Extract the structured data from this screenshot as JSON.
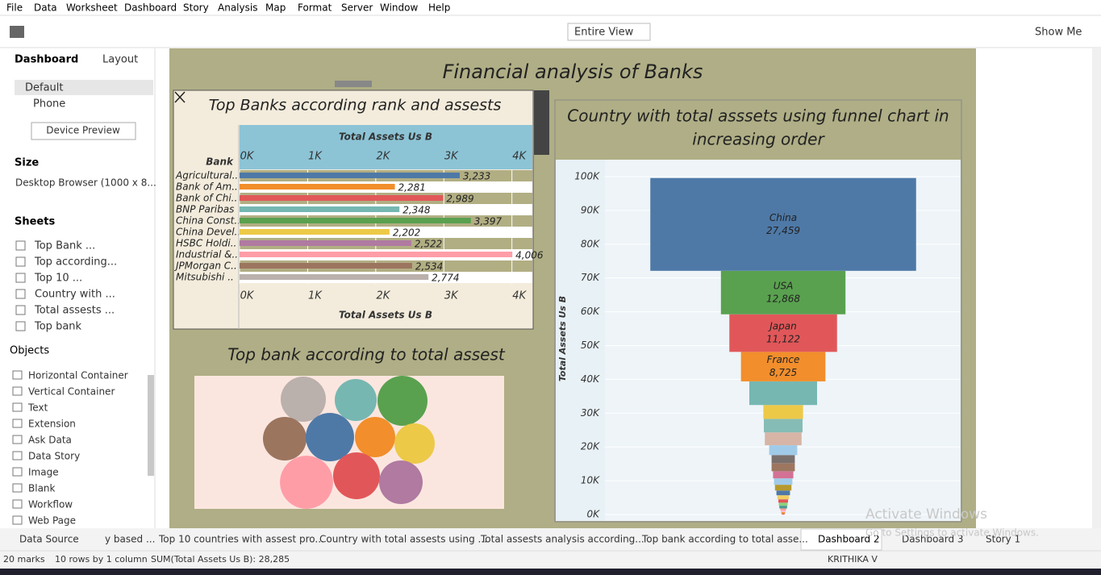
{
  "menu": [
    "File",
    "Data",
    "Worksheet",
    "Dashboard",
    "Story",
    "Analysis",
    "Map",
    "Format",
    "Server",
    "Window",
    "Help"
  ],
  "toolbar": {
    "view": "Entire View",
    "show_me": "Show Me"
  },
  "side_panel": {
    "tabs": [
      "Dashboard",
      "Layout"
    ],
    "devices": [
      "Default",
      "Phone"
    ],
    "device_preview": "Device Preview",
    "size_heading": "Size",
    "size": "Desktop Browser (1000 x 8...",
    "sheets_heading": "Sheets",
    "sheets": [
      "Top Bank ...",
      "Top according...",
      "Top 10 ...",
      "Country with ...",
      "Total assests ...",
      "Top bank"
    ],
    "objects_heading": "Objects",
    "objects": [
      "Horizontal Container",
      "Vertical Container",
      "Text",
      "Extension",
      "Ask Data",
      "Data Story",
      "Image",
      "Blank",
      "Workflow",
      "Web Page"
    ]
  },
  "dashboard_title": "Financial analysis of Banks",
  "chart_data": [
    {
      "type": "bar",
      "title": "Top Banks according rank and assests",
      "y_label": "Bank",
      "x_label": "Total Assets Us B",
      "categories": [
        "Agricultural..",
        "Bank of Am..",
        "Bank of Chi..",
        "BNP Paribas",
        "China Const..",
        "China Devel..",
        "HSBC Holdi..",
        "Industrial &..",
        "JPMorgan C..",
        "Mitsubishi .."
      ],
      "values": [
        3233,
        2281,
        2989,
        2348,
        3397,
        2202,
        2522,
        4006,
        2534,
        2774
      ],
      "value_labels": [
        "3,233",
        "2,281",
        "2,989",
        "2,348",
        "3,397",
        "2,202",
        "2,522",
        "4,006",
        "2,534",
        "2,774"
      ],
      "colors": [
        "#4e79a7",
        "#f28e2b",
        "#e15759",
        "#76b7b2",
        "#59a14f",
        "#edc948",
        "#b07aa1",
        "#ff9da7",
        "#9c755f",
        "#bab0ac"
      ],
      "xlim": [
        0,
        4300
      ],
      "xticks": [
        {
          "value": 0,
          "label": "0K"
        },
        {
          "value": 1000,
          "label": "1K"
        },
        {
          "value": 2000,
          "label": "2K"
        },
        {
          "value": 3000,
          "label": "3K"
        },
        {
          "value": 4000,
          "label": "4K"
        }
      ]
    },
    {
      "type": "bubble",
      "title": "Top bank according to total assest",
      "values": [
        2900,
        2500,
        3554,
        2696,
        3328,
        2311,
        2311,
        4006,
        3110,
        2696
      ],
      "colors": [
        "#bab0ac",
        "#76b7b2",
        "#59a14f",
        "#9c755f",
        "#4e79a7",
        "#f28e2b",
        "#edc948",
        "#ff9da7",
        "#e15759",
        "#b07aa1"
      ]
    },
    {
      "type": "funnel",
      "title": [
        "Country with total asssets using funnel chart in",
        "increasing order"
      ],
      "y_label": "Total Assets Us B",
      "categories": [
        "China",
        "USA",
        "Japan",
        "France",
        null,
        null,
        null,
        null,
        null,
        null,
        null,
        null,
        null,
        null,
        null,
        null,
        null,
        null,
        null,
        null,
        null,
        null,
        null
      ],
      "values": [
        27459,
        12868,
        11122,
        8725,
        7000,
        4100,
        4000,
        3800,
        2900,
        2400,
        2400,
        2100,
        1900,
        1700,
        1400,
        1200,
        1000,
        900,
        800,
        600,
        500,
        400,
        300
      ],
      "value_labels": [
        "27,459",
        "12,868",
        "11,122",
        "8,725",
        null,
        null,
        null,
        null,
        null,
        null,
        null,
        null,
        null,
        null,
        null,
        null,
        null,
        null,
        null,
        null,
        null,
        null,
        null
      ],
      "colors": [
        "#4e79a7",
        "#59a14f",
        "#e15759",
        "#f28e2b",
        "#76b7b2",
        "#edc948",
        "#86bcb6",
        "#d7b5a6",
        "#a0cbe8",
        "#79706e",
        "#9d7660",
        "#d37295",
        "#a0cbe8",
        "#b6992d",
        "#4e79a7",
        "#f1ce63",
        "#e15759",
        "#8cd17d",
        "#499894",
        "#ff9d9a",
        "#fabfd2",
        "#f28e2b",
        "#e15759"
      ],
      "ylim": [
        0,
        105000
      ],
      "yticks": [
        {
          "value": 0,
          "label": "0K"
        },
        {
          "value": 10000,
          "label": "10K"
        },
        {
          "value": 20000,
          "label": "20K"
        },
        {
          "value": 30000,
          "label": "30K"
        },
        {
          "value": 40000,
          "label": "40K"
        },
        {
          "value": 50000,
          "label": "50K"
        },
        {
          "value": 60000,
          "label": "60K"
        },
        {
          "value": 70000,
          "label": "70K"
        },
        {
          "value": 80000,
          "label": "80K"
        },
        {
          "value": 90000,
          "label": "90K"
        },
        {
          "value": 100000,
          "label": "100K"
        }
      ]
    }
  ],
  "tabs": [
    "Data Source",
    "y based ...",
    "Top 10 countries with assest pro...",
    "Country with total assests using ...",
    "Total assests analysis according...",
    "Top bank according to total asse...",
    "Dashboard 2",
    "Dashboard 3",
    "Story 1"
  ],
  "status": {
    "marks": "20 marks",
    "rows": "10 rows by 1 column",
    "sum": "SUM(Total Assets Us B): 28,285",
    "user": "KRITHIKA V"
  },
  "watermark": [
    "Activate Windows",
    "Go to Settings to activate Windows."
  ]
}
